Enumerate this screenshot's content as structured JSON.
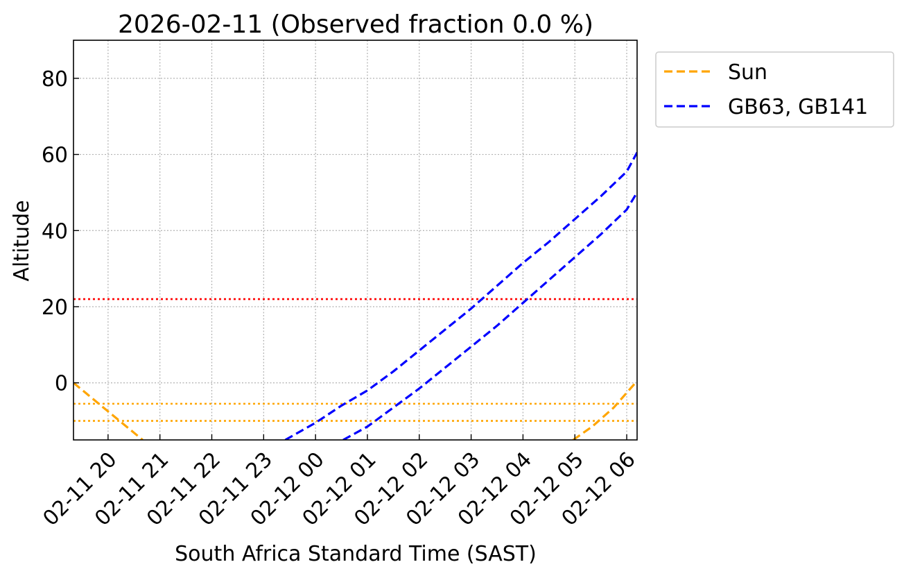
{
  "chart_data": {
    "type": "line",
    "title": "2026-02-11 (Observed fraction 0.0 %)",
    "xlabel": "South Africa Standard Time (SAST)",
    "ylabel": "Altitude",
    "x_unit": "hours",
    "xlim": [
      "2026-02-11 19:20",
      "2026-02-12 06:12"
    ],
    "ylim": [
      -15,
      90
    ],
    "x_ticks": [
      {
        "t": "2026-02-11 20:00",
        "label": "02-11 20"
      },
      {
        "t": "2026-02-11 21:00",
        "label": "02-11 21"
      },
      {
        "t": "2026-02-11 22:00",
        "label": "02-11 22"
      },
      {
        "t": "2026-02-11 23:00",
        "label": "02-11 23"
      },
      {
        "t": "2026-02-12 00:00",
        "label": "02-12 00"
      },
      {
        "t": "2026-02-12 01:00",
        "label": "02-12 01"
      },
      {
        "t": "2026-02-12 02:00",
        "label": "02-12 02"
      },
      {
        "t": "2026-02-12 03:00",
        "label": "02-12 03"
      },
      {
        "t": "2026-02-12 04:00",
        "label": "02-12 04"
      },
      {
        "t": "2026-02-12 05:00",
        "label": "02-12 05"
      },
      {
        "t": "2026-02-12 06:00",
        "label": "02-12 06"
      }
    ],
    "y_ticks": [
      0,
      20,
      40,
      60,
      80
    ],
    "grid": true,
    "grid_style": "dotted",
    "legend_placement": "outside-top-right",
    "legend": [
      {
        "label": "Sun",
        "color": "#FFA500"
      },
      {
        "label": "GB63, GB141",
        "color": "#0000FF"
      }
    ],
    "series": [
      {
        "label_ref": 0,
        "color": "#FFA500",
        "dash": "dashed",
        "points": [
          [
            "2026-02-11 19:20",
            0
          ],
          [
            "2026-02-11 20:00",
            -7.5
          ],
          [
            "2026-02-11 20:40",
            -15
          ]
        ]
      },
      {
        "label_ref": 0,
        "color": "#FFA500",
        "dash": "dashed",
        "points": [
          [
            "2026-02-12 04:58",
            -15
          ],
          [
            "2026-02-12 05:20",
            -11.5
          ],
          [
            "2026-02-12 05:45",
            -6.5
          ],
          [
            "2026-02-12 06:12",
            0.5
          ]
        ]
      },
      {
        "label_ref": 1,
        "color": "#0000FF",
        "dash": "dashed",
        "points": [
          [
            "2026-02-11 23:25",
            -15
          ],
          [
            "2026-02-12 00:00",
            -10.5
          ],
          [
            "2026-02-12 00:30",
            -6
          ],
          [
            "2026-02-12 01:00",
            -2
          ],
          [
            "2026-02-12 01:30",
            3
          ],
          [
            "2026-02-12 02:00",
            8.5
          ],
          [
            "2026-02-12 02:30",
            14
          ],
          [
            "2026-02-12 03:00",
            19.5
          ],
          [
            "2026-02-12 03:30",
            25.5
          ],
          [
            "2026-02-12 04:00",
            31.5
          ],
          [
            "2026-02-12 04:30",
            37
          ],
          [
            "2026-02-12 05:00",
            43
          ],
          [
            "2026-02-12 05:30",
            49
          ],
          [
            "2026-02-12 06:00",
            55.5
          ],
          [
            "2026-02-12 06:12",
            60.5
          ]
        ]
      },
      {
        "label_ref": 1,
        "color": "#0000FF",
        "dash": "dashed",
        "points": [
          [
            "2026-02-12 00:32",
            -15
          ],
          [
            "2026-02-12 01:00",
            -11.5
          ],
          [
            "2026-02-12 01:30",
            -6.5
          ],
          [
            "2026-02-12 02:00",
            -1.5
          ],
          [
            "2026-02-12 02:30",
            4
          ],
          [
            "2026-02-12 03:00",
            9.5
          ],
          [
            "2026-02-12 03:30",
            15
          ],
          [
            "2026-02-12 04:00",
            21
          ],
          [
            "2026-02-12 04:30",
            27
          ],
          [
            "2026-02-12 05:00",
            33
          ],
          [
            "2026-02-12 05:30",
            39
          ],
          [
            "2026-02-12 06:00",
            45.5
          ],
          [
            "2026-02-12 06:12",
            50
          ]
        ]
      }
    ],
    "reference_lines": [
      {
        "y": 22,
        "color": "#FF0000",
        "dash": "dotted"
      },
      {
        "y": -5.5,
        "color": "#FFA500",
        "dash": "dotted"
      },
      {
        "y": -10,
        "color": "#FFA500",
        "dash": "dotted"
      }
    ]
  }
}
